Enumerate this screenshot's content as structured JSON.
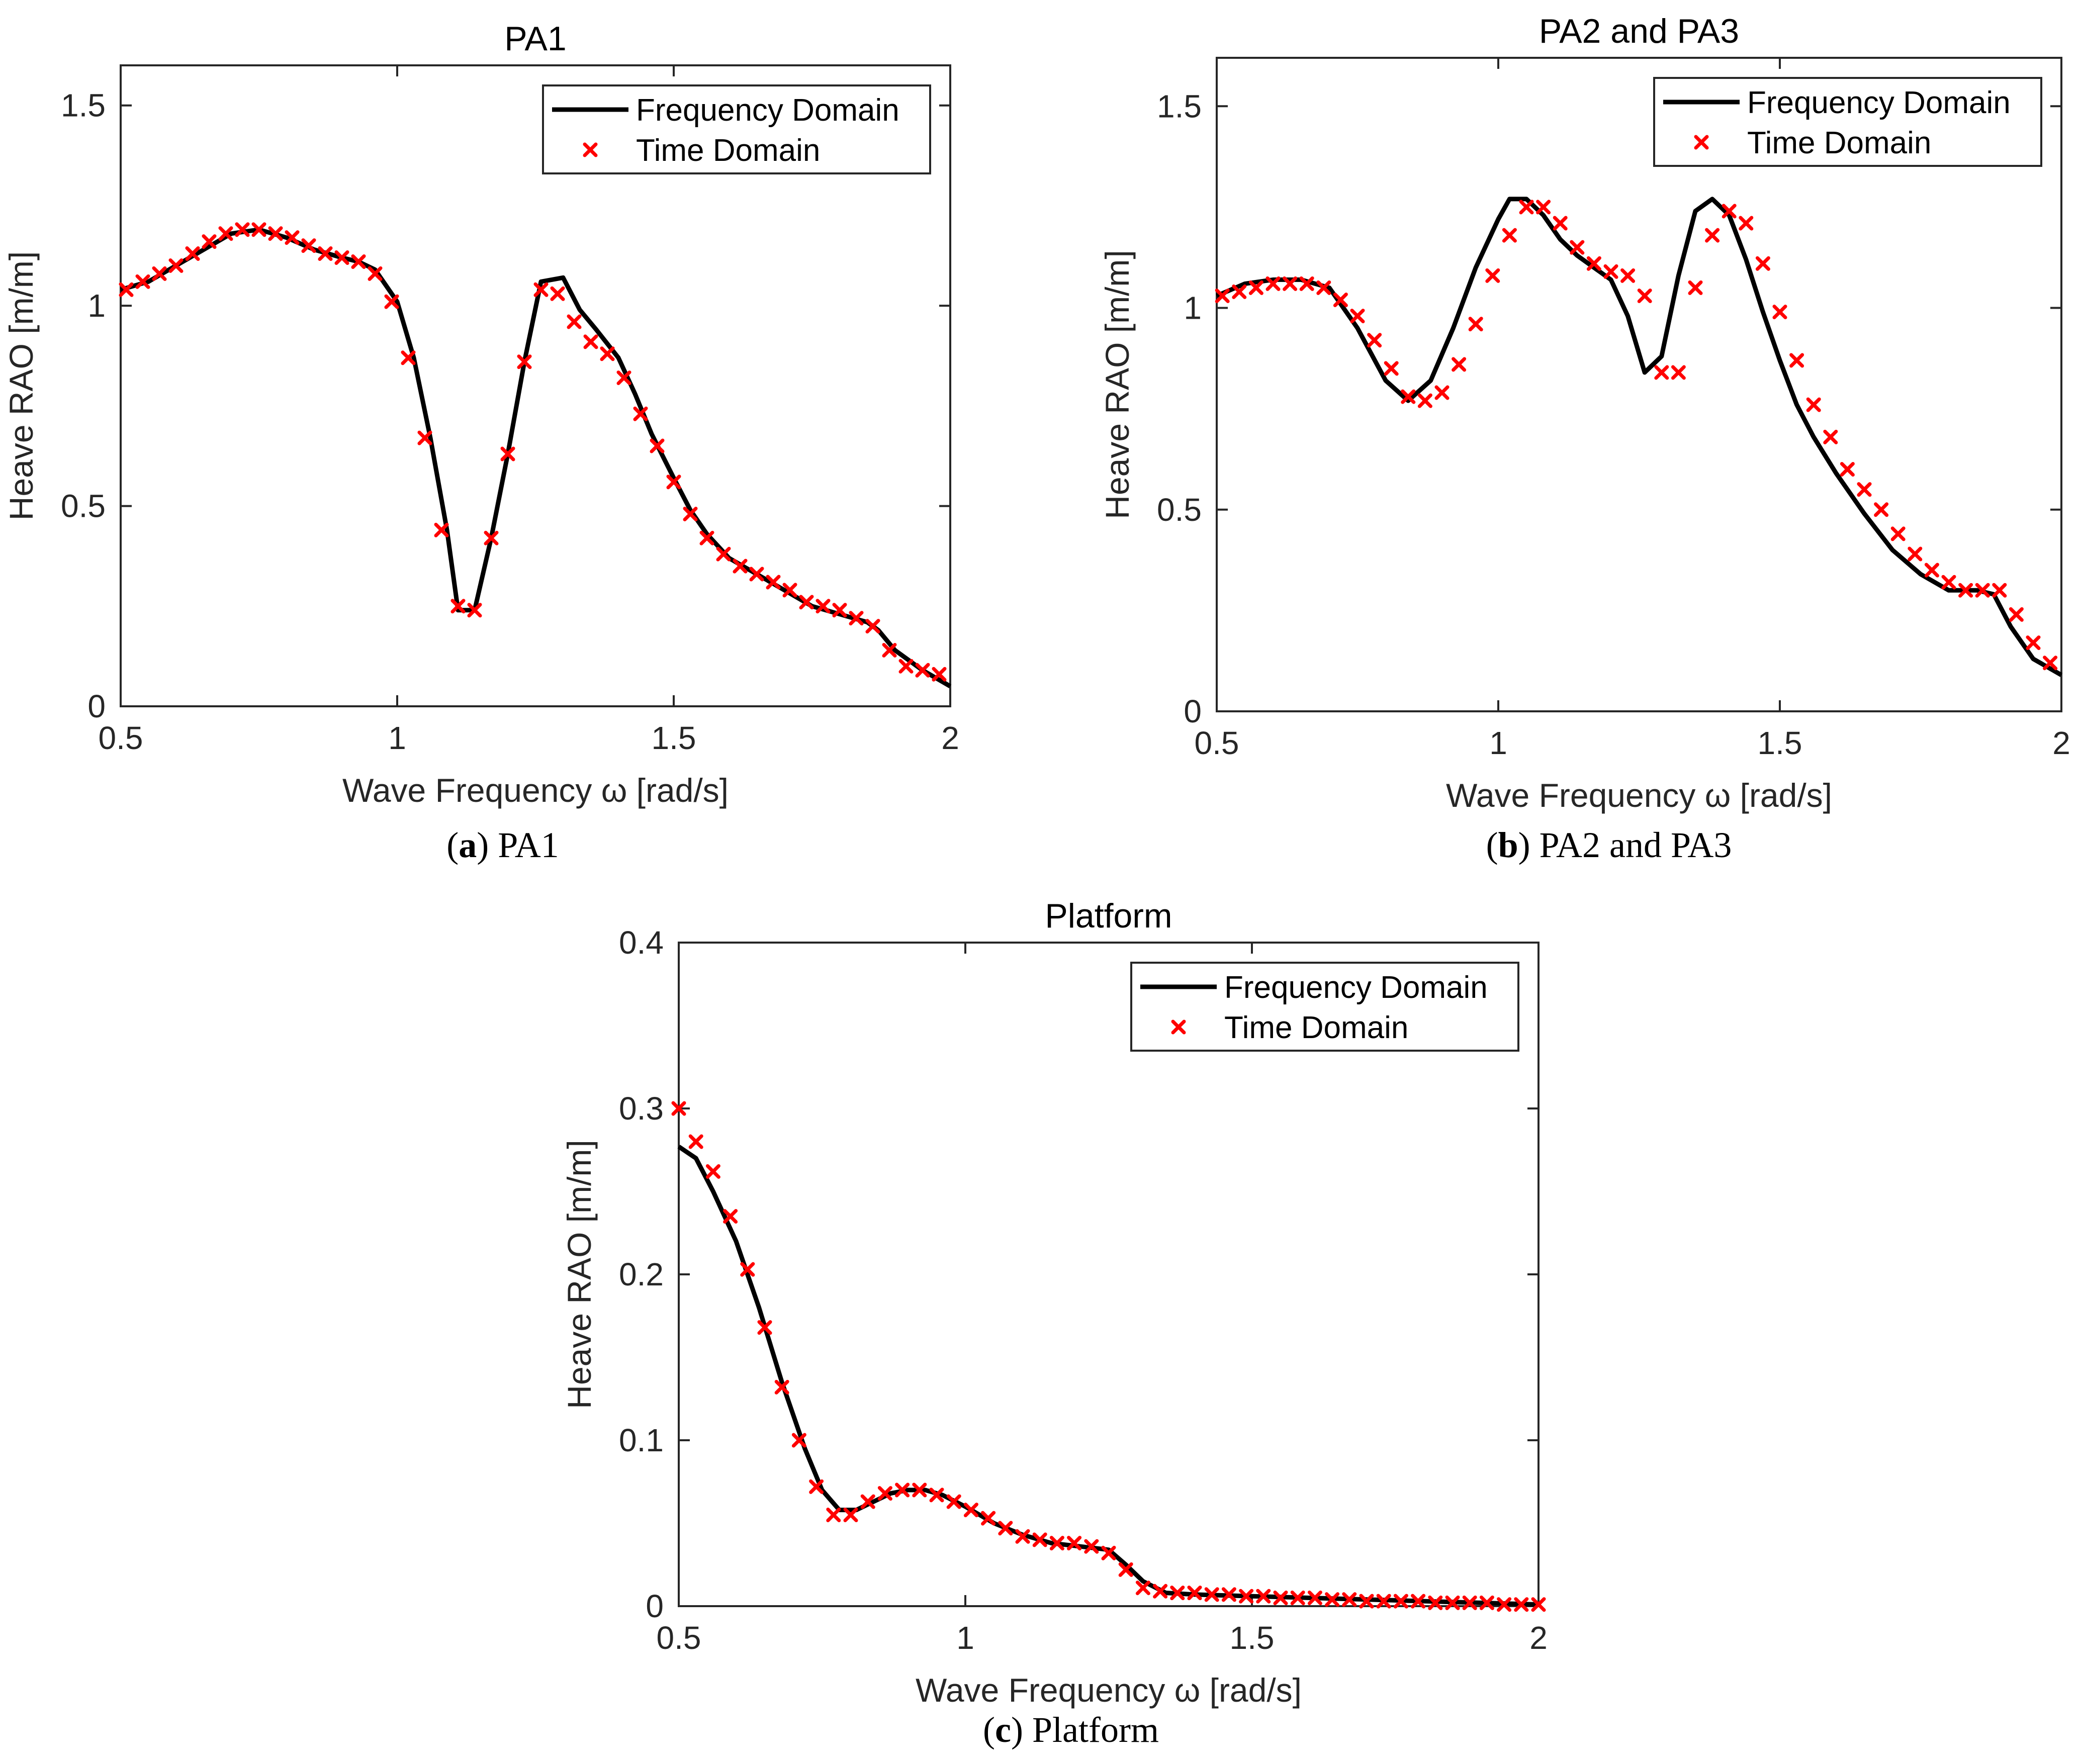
{
  "chart_data": [
    {
      "type": "line",
      "title": "PA1",
      "caption": {
        "letter": "a",
        "text": "PA1"
      },
      "xlabel": "Wave Frequency ω [rad/s]",
      "ylabel": "Heave RAO [m/m]",
      "xlim": [
        0.5,
        2
      ],
      "ylim": [
        0,
        1.6
      ],
      "xticks": [
        "0.5",
        "1",
        "1.5",
        "2"
      ],
      "yticks": [
        "0",
        "0.5",
        "1",
        "1.5"
      ],
      "legend_position": "top-right",
      "series": [
        {
          "name": "Frequency Domain",
          "style": "solid line",
          "color": "#000000",
          "x": [
            0.5,
            0.55,
            0.6,
            0.65,
            0.7,
            0.75,
            0.8,
            0.85,
            0.9,
            0.93,
            0.96,
            1.0,
            1.03,
            1.06,
            1.09,
            1.11,
            1.14,
            1.17,
            1.2,
            1.23,
            1.26,
            1.3,
            1.33,
            1.36,
            1.4,
            1.43,
            1.46,
            1.5,
            1.53,
            1.56,
            1.6,
            1.65,
            1.7,
            1.75,
            1.8,
            1.85,
            1.87,
            1.9,
            1.95,
            2.0
          ],
          "y": [
            1.04,
            1.06,
            1.1,
            1.14,
            1.18,
            1.19,
            1.17,
            1.14,
            1.12,
            1.11,
            1.09,
            1.01,
            0.87,
            0.67,
            0.44,
            0.24,
            0.24,
            0.42,
            0.63,
            0.86,
            1.06,
            1.07,
            0.99,
            0.94,
            0.87,
            0.78,
            0.68,
            0.57,
            0.49,
            0.43,
            0.37,
            0.33,
            0.29,
            0.25,
            0.23,
            0.21,
            0.19,
            0.14,
            0.09,
            0.05
          ]
        },
        {
          "name": "Time Domain",
          "style": "x markers",
          "color": "#ff0000",
          "x": [
            0.51,
            0.54,
            0.57,
            0.6,
            0.63,
            0.66,
            0.69,
            0.72,
            0.75,
            0.78,
            0.81,
            0.84,
            0.87,
            0.9,
            0.93,
            0.96,
            0.99,
            1.02,
            1.05,
            1.08,
            1.11,
            1.14,
            1.17,
            1.2,
            1.23,
            1.26,
            1.29,
            1.32,
            1.35,
            1.38,
            1.41,
            1.44,
            1.47,
            1.5,
            1.53,
            1.56,
            1.59,
            1.62,
            1.65,
            1.68,
            1.71,
            1.74,
            1.77,
            1.8,
            1.83,
            1.86,
            1.89,
            1.92,
            1.95,
            1.98
          ],
          "y": [
            1.04,
            1.06,
            1.08,
            1.1,
            1.13,
            1.16,
            1.18,
            1.19,
            1.19,
            1.18,
            1.17,
            1.15,
            1.13,
            1.12,
            1.11,
            1.08,
            1.01,
            0.87,
            0.67,
            0.44,
            0.25,
            0.24,
            0.42,
            0.63,
            0.86,
            1.04,
            1.03,
            0.96,
            0.91,
            0.88,
            0.82,
            0.73,
            0.65,
            0.56,
            0.48,
            0.42,
            0.38,
            0.35,
            0.33,
            0.31,
            0.29,
            0.26,
            0.25,
            0.24,
            0.22,
            0.2,
            0.14,
            0.1,
            0.09,
            0.08
          ]
        }
      ]
    },
    {
      "type": "line",
      "title": "PA2 and PA3",
      "caption": {
        "letter": "b",
        "text": "PA2 and PA3"
      },
      "xlabel": "Wave Frequency ω [rad/s]",
      "ylabel": "Heave RAO [m/m]",
      "xlim": [
        0.5,
        2
      ],
      "ylim": [
        0,
        1.62
      ],
      "xticks": [
        "0.5",
        "1",
        "1.5",
        "2"
      ],
      "yticks": [
        "0",
        "0.5",
        "1",
        "1.5"
      ],
      "legend_position": "top-right",
      "series": [
        {
          "name": "Frequency Domain",
          "style": "solid line",
          "color": "#000000",
          "x": [
            0.5,
            0.55,
            0.6,
            0.65,
            0.7,
            0.75,
            0.8,
            0.84,
            0.88,
            0.92,
            0.96,
            1.0,
            1.02,
            1.05,
            1.08,
            1.11,
            1.14,
            1.17,
            1.2,
            1.23,
            1.26,
            1.29,
            1.32,
            1.35,
            1.38,
            1.41,
            1.44,
            1.47,
            1.5,
            1.53,
            1.56,
            1.6,
            1.65,
            1.7,
            1.75,
            1.8,
            1.85,
            1.88,
            1.91,
            1.95,
            2.0
          ],
          "y": [
            1.03,
            1.06,
            1.07,
            1.07,
            1.05,
            0.95,
            0.82,
            0.77,
            0.82,
            0.95,
            1.1,
            1.22,
            1.27,
            1.27,
            1.23,
            1.17,
            1.13,
            1.1,
            1.07,
            0.98,
            0.84,
            0.88,
            1.08,
            1.24,
            1.27,
            1.23,
            1.12,
            0.99,
            0.87,
            0.76,
            0.68,
            0.59,
            0.49,
            0.4,
            0.34,
            0.3,
            0.3,
            0.29,
            0.21,
            0.13,
            0.09
          ]
        },
        {
          "name": "Time Domain",
          "style": "x markers",
          "color": "#ff0000",
          "x": [
            0.51,
            0.54,
            0.57,
            0.6,
            0.63,
            0.66,
            0.69,
            0.72,
            0.75,
            0.78,
            0.81,
            0.84,
            0.87,
            0.9,
            0.93,
            0.96,
            0.99,
            1.02,
            1.05,
            1.08,
            1.11,
            1.14,
            1.17,
            1.2,
            1.23,
            1.26,
            1.29,
            1.32,
            1.35,
            1.38,
            1.41,
            1.44,
            1.47,
            1.5,
            1.53,
            1.56,
            1.59,
            1.62,
            1.65,
            1.68,
            1.71,
            1.74,
            1.77,
            1.8,
            1.83,
            1.86,
            1.89,
            1.92,
            1.95,
            1.98
          ],
          "y": [
            1.03,
            1.04,
            1.05,
            1.06,
            1.06,
            1.06,
            1.05,
            1.02,
            0.98,
            0.92,
            0.85,
            0.78,
            0.77,
            0.79,
            0.86,
            0.96,
            1.08,
            1.18,
            1.25,
            1.25,
            1.21,
            1.15,
            1.11,
            1.09,
            1.08,
            1.03,
            0.84,
            0.84,
            1.05,
            1.18,
            1.24,
            1.21,
            1.11,
            0.99,
            0.87,
            0.76,
            0.68,
            0.6,
            0.55,
            0.5,
            0.44,
            0.39,
            0.35,
            0.32,
            0.3,
            0.3,
            0.3,
            0.24,
            0.17,
            0.12
          ]
        }
      ]
    },
    {
      "type": "line",
      "title": "Platform",
      "caption": {
        "letter": "c",
        "text": "Platform"
      },
      "xlabel": "Wave Frequency ω [rad/s]",
      "ylabel": "Heave RAO [m/m]",
      "xlim": [
        0.5,
        2
      ],
      "ylim": [
        0,
        0.4
      ],
      "xticks": [
        "0.5",
        "1",
        "1.5",
        "2"
      ],
      "yticks": [
        "0",
        "0.1",
        "0.2",
        "0.3",
        "0.4"
      ],
      "legend_position": "top-right",
      "series": [
        {
          "name": "Frequency Domain",
          "style": "solid line",
          "color": "#000000",
          "x": [
            0.5,
            0.53,
            0.56,
            0.6,
            0.64,
            0.68,
            0.72,
            0.75,
            0.78,
            0.81,
            0.84,
            0.87,
            0.9,
            0.93,
            0.96,
            1.0,
            1.05,
            1.1,
            1.15,
            1.2,
            1.25,
            1.28,
            1.31,
            1.35,
            1.4,
            1.5,
            1.6,
            1.7,
            1.8,
            1.9,
            2.0
          ],
          "y": [
            0.277,
            0.27,
            0.25,
            0.22,
            0.18,
            0.135,
            0.095,
            0.07,
            0.058,
            0.058,
            0.063,
            0.068,
            0.07,
            0.07,
            0.067,
            0.06,
            0.05,
            0.043,
            0.038,
            0.036,
            0.034,
            0.025,
            0.015,
            0.008,
            0.007,
            0.006,
            0.005,
            0.004,
            0.003,
            0.002,
            0.001
          ]
        },
        {
          "name": "Time Domain",
          "style": "x markers",
          "color": "#ff0000",
          "x": [
            0.5,
            0.53,
            0.56,
            0.59,
            0.62,
            0.65,
            0.68,
            0.71,
            0.74,
            0.77,
            0.8,
            0.83,
            0.86,
            0.89,
            0.92,
            0.95,
            0.98,
            1.01,
            1.04,
            1.07,
            1.1,
            1.13,
            1.16,
            1.19,
            1.22,
            1.25,
            1.28,
            1.31,
            1.34,
            1.37,
            1.4,
            1.43,
            1.46,
            1.49,
            1.52,
            1.55,
            1.58,
            1.61,
            1.64,
            1.67,
            1.7,
            1.73,
            1.76,
            1.79,
            1.82,
            1.85,
            1.88,
            1.91,
            1.94,
            1.97,
            2.0
          ],
          "y": [
            0.3,
            0.28,
            0.262,
            0.235,
            0.203,
            0.168,
            0.132,
            0.1,
            0.072,
            0.055,
            0.055,
            0.063,
            0.068,
            0.07,
            0.07,
            0.067,
            0.063,
            0.058,
            0.053,
            0.047,
            0.042,
            0.04,
            0.038,
            0.038,
            0.036,
            0.032,
            0.022,
            0.011,
            0.009,
            0.008,
            0.008,
            0.007,
            0.007,
            0.006,
            0.006,
            0.005,
            0.005,
            0.005,
            0.004,
            0.004,
            0.003,
            0.003,
            0.003,
            0.003,
            0.002,
            0.002,
            0.002,
            0.002,
            0.001,
            0.001,
            0.001
          ]
        }
      ]
    }
  ]
}
